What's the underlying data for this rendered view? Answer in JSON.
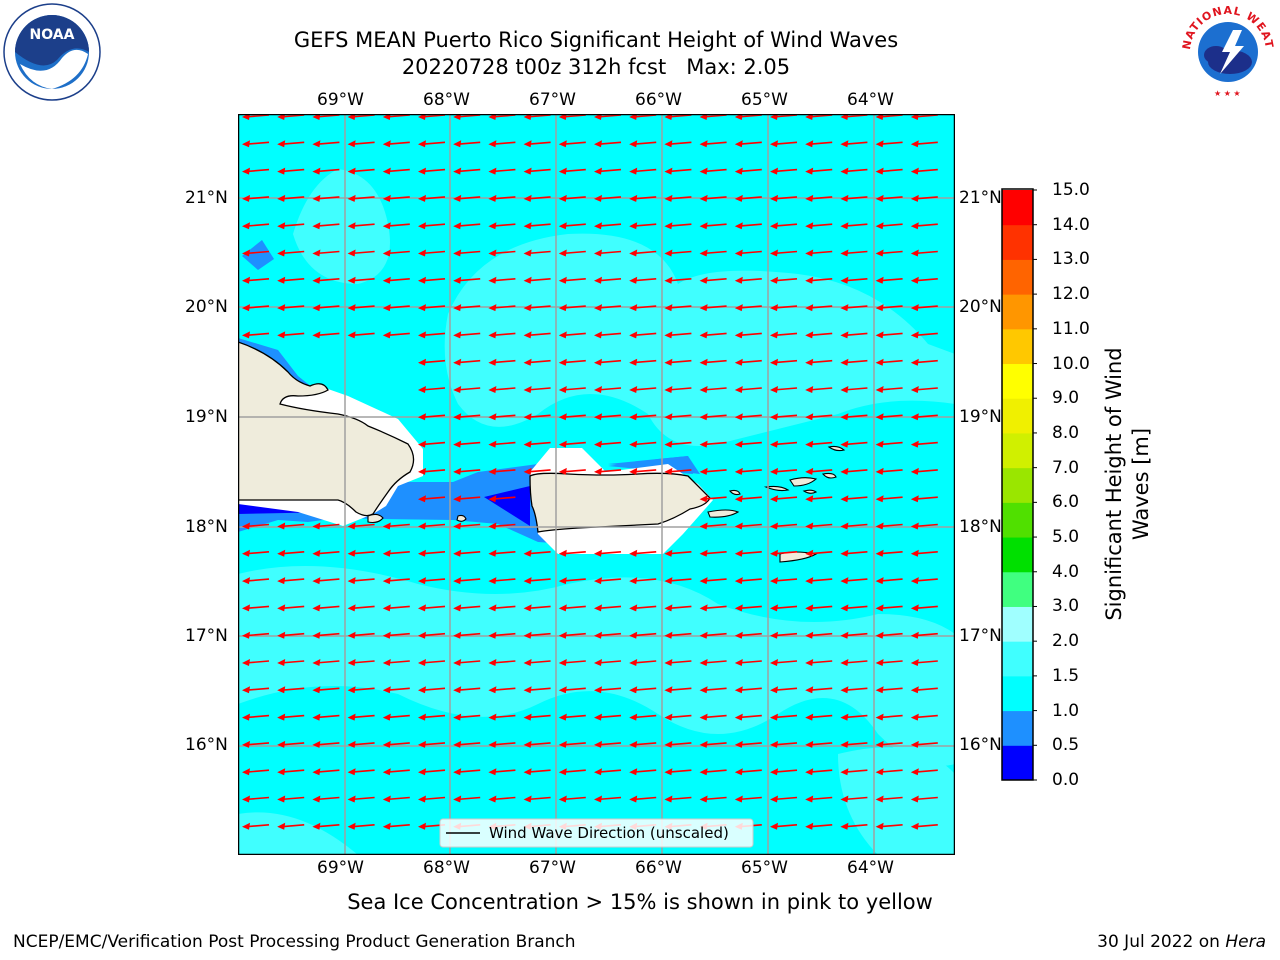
{
  "header": {
    "title_line1": "GEFS MEAN Puerto Rico Significant Height of Wind Waves",
    "title_line2": "20220728 t00z 312h fcst   Max: 2.05"
  },
  "map": {
    "lon_labels": [
      "69°W",
      "68°W",
      "67°W",
      "66°W",
      "65°W",
      "64°W"
    ],
    "lat_labels": [
      "21°N",
      "20°N",
      "19°N",
      "18°N",
      "17°N",
      "16°N"
    ],
    "legend_label": "Wind Wave Direction (unscaled)",
    "vector_color": "#ff0000",
    "land_color": "#efecdc",
    "vector_direction": "westward"
  },
  "colorbar": {
    "label": "Significant Height of Wind Waves [m]",
    "label_line1": "Significant Height of Wind",
    "label_line2": "Waves [m]",
    "ticks": [
      "15.0",
      "14.0",
      "13.0",
      "12.0",
      "11.0",
      "10.0",
      "9.0",
      "8.0",
      "7.0",
      "6.0",
      "5.0",
      "4.0",
      "3.0",
      "2.0",
      "1.5",
      "1.0",
      "0.5",
      "0.0"
    ],
    "colors_bottom_to_top": [
      "#0000ff",
      "#1e90ff",
      "#00ffff",
      "#40ffff",
      "#a0ffff",
      "#40ff80",
      "#00e000",
      "#50e000",
      "#9ae600",
      "#d0f000",
      "#f0f000",
      "#ffff00",
      "#ffc800",
      "#ff9600",
      "#ff6400",
      "#ff3200",
      "#ff0000"
    ]
  },
  "logos": {
    "noaa_text": "NOAA",
    "noaa_ring": "NATIONAL OCEANIC AND ATMOSPHERIC ADMINISTRATION • U.S. DEPARTMENT OF COMMERCE",
    "nws_ring": "NATIONAL WEATHER SERVICE"
  },
  "footer": {
    "caption": "Sea Ice Concentration > 15% is shown in pink to yellow",
    "left": "NCEP/EMC/Verification Post Processing Product Generation Branch",
    "right_prefix": "30 Jul 2022 on ",
    "right_host": "Hera"
  }
}
